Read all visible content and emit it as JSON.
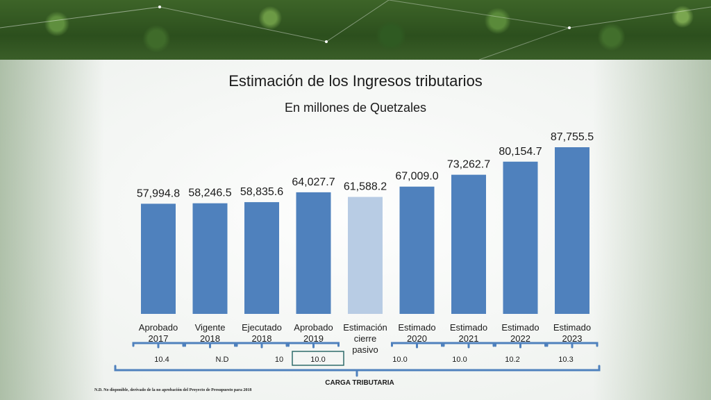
{
  "slide": {
    "title": "Estimación de los Ingresos tributarios",
    "subtitle": "En millones de Quetzales",
    "footnote": "N.D. No disponible, derivado de la no aprobación del Proyecto de Presupuesto para 2018",
    "carga_label": "CARGA TRIBUTARIA"
  },
  "colors": {
    "bar": "#4f81bd",
    "bar_highlight": "#b8cce4",
    "bracket": "#4f81bd",
    "box_border": "#2e6b6b"
  },
  "chart_data": {
    "type": "bar",
    "title": "Estimación de los Ingresos tributarios",
    "subtitle": "En millones de Quetzales",
    "categories": [
      [
        "Aprobado",
        "2017"
      ],
      [
        "Vigente",
        "2018"
      ],
      [
        "Ejecutado",
        "2018"
      ],
      [
        "Aprobado",
        "2019"
      ],
      [
        "Estimación",
        "cierre",
        "pasivo"
      ],
      [
        "Estimado",
        "2020"
      ],
      [
        "Estimado",
        "2021"
      ],
      [
        "Estimado",
        "2022"
      ],
      [
        "Estimado",
        "2023"
      ]
    ],
    "values": [
      57994.8,
      58246.5,
      58835.6,
      64027.7,
      61588.2,
      67009.0,
      73262.7,
      80154.7,
      87755.5
    ],
    "value_labels": [
      "57,994.8",
      "58,246.5",
      "58,835.6",
      "64,027.7",
      "61,588.2",
      "67,009.0",
      "73,262.7",
      "80,154.7",
      "87,755.5"
    ],
    "highlight_index": 4,
    "carga_tributaria": [
      "10.4",
      "N.D",
      "10",
      "10.0",
      "10.0",
      "10.0",
      "10.2",
      "10.3"
    ],
    "carga_boxed_index": 3,
    "ylim": [
      0,
      90000
    ],
    "grid": false,
    "legend": "none"
  }
}
